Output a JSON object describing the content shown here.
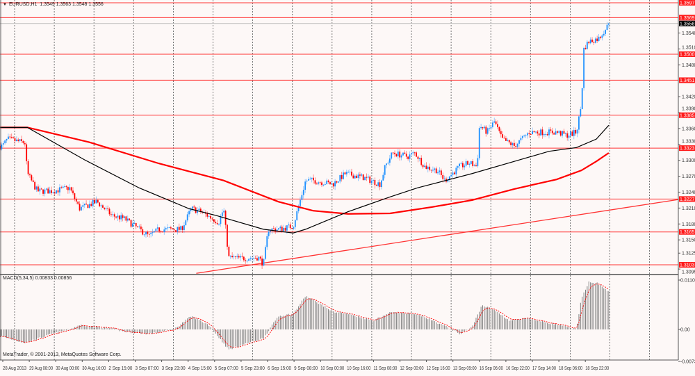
{
  "header": {
    "symbol": "EURUSD,H1",
    "ohlc": "1.3549 1.3563 1.3548 1.3556",
    "collapse_icon": "triangle-down-icon"
  },
  "macd_label": "MACD(5,34,5) 0.00833 0.00856",
  "copyright": "MetaTrader, © 2001-2013, MetaQuotes Software Corp.",
  "colors": {
    "background": "#fdf8f7",
    "bull": "#1e90ff",
    "bear": "#ff0000",
    "level": "#ff3333",
    "ma_fast": "#000000",
    "ma_slow": "#ff0000",
    "histogram": "#808080",
    "signal": "#ff0000"
  },
  "chart_data": [
    {
      "type": "candlestick",
      "title": "EURUSD,H1",
      "ylim": [
        1.309,
        1.3602
      ],
      "x_range_bars": [
        0,
        273
      ],
      "current_price": "1.3558",
      "price_ticks": [
        "1.3540",
        "1.3510",
        "1.3480",
        "1.3420",
        "1.3390",
        "1.3360",
        "1.3330",
        "1.3300",
        "1.3270",
        "1.3240",
        "1.3210",
        "1.3180",
        "1.3150",
        "1.3125",
        "1.3095"
      ],
      "levels": [
        "1.3597",
        "1.3569",
        "1.3500",
        "1.3451",
        "1.3385",
        "1.3323",
        "1.3227",
        "1.3165",
        "1.3103"
      ],
      "close_path": [
        [
          1,
          1.3327
        ],
        [
          3,
          1.334
        ],
        [
          10,
          1.3333
        ],
        [
          11,
          1.3275
        ],
        [
          15,
          1.3242
        ],
        [
          21,
          1.3242
        ],
        [
          28,
          1.3248
        ],
        [
          32,
          1.3209
        ],
        [
          39,
          1.3222
        ],
        [
          45,
          1.3196
        ],
        [
          50,
          1.319
        ],
        [
          56,
          1.317
        ],
        [
          60,
          1.3157
        ],
        [
          64,
          1.317
        ],
        [
          73,
          1.317
        ],
        [
          77,
          1.3209
        ],
        [
          81,
          1.3203
        ],
        [
          88,
          1.3183
        ],
        [
          90,
          1.3209
        ],
        [
          92,
          1.3117
        ],
        [
          97,
          1.3115
        ],
        [
          104,
          1.3117
        ],
        [
          106,
          1.3104
        ],
        [
          108,
          1.317
        ],
        [
          112,
          1.317
        ],
        [
          118,
          1.3176
        ],
        [
          123,
          1.3262
        ],
        [
          126,
          1.3262
        ],
        [
          134,
          1.3255
        ],
        [
          139,
          1.3275
        ],
        [
          146,
          1.3268
        ],
        [
          153,
          1.3255
        ],
        [
          155,
          1.3288
        ],
        [
          158,
          1.3314
        ],
        [
          164,
          1.3307
        ],
        [
          167,
          1.3314
        ],
        [
          171,
          1.3288
        ],
        [
          176,
          1.3281
        ],
        [
          179,
          1.3262
        ],
        [
          185,
          1.3288
        ],
        [
          189,
          1.3295
        ],
        [
          192,
          1.3288
        ],
        [
          193,
          1.3366
        ],
        [
          196,
          1.3353
        ],
        [
          199,
          1.3373
        ],
        [
          202,
          1.334
        ],
        [
          207,
          1.3327
        ],
        [
          213,
          1.3353
        ],
        [
          218,
          1.3353
        ],
        [
          224,
          1.3353
        ],
        [
          228,
          1.3347
        ],
        [
          232,
          1.3353
        ],
        [
          234,
          1.3406
        ],
        [
          235,
          1.3511
        ],
        [
          237,
          1.3524
        ],
        [
          241,
          1.353
        ],
        [
          244,
          1.355
        ],
        [
          245,
          1.3556
        ]
      ],
      "ma_fast": [
        [
          0,
          1.3362
        ],
        [
          11,
          1.3362
        ],
        [
          34,
          1.3301
        ],
        [
          56,
          1.3248
        ],
        [
          76,
          1.3209
        ],
        [
          87,
          1.3196
        ],
        [
          106,
          1.317
        ],
        [
          118,
          1.3163
        ],
        [
          123,
          1.317
        ],
        [
          140,
          1.3203
        ],
        [
          157,
          1.3231
        ],
        [
          168,
          1.3248
        ],
        [
          190,
          1.3275
        ],
        [
          207,
          1.3298
        ],
        [
          221,
          1.3317
        ],
        [
          232,
          1.3324
        ],
        [
          240,
          1.334
        ],
        [
          245,
          1.3366
        ]
      ],
      "ma_slow": [
        [
          0,
          1.3362
        ],
        [
          11,
          1.3362
        ],
        [
          36,
          1.3334
        ],
        [
          64,
          1.3294
        ],
        [
          90,
          1.3262
        ],
        [
          112,
          1.3222
        ],
        [
          126,
          1.3205
        ],
        [
          140,
          1.3199
        ],
        [
          157,
          1.32
        ],
        [
          174,
          1.3212
        ],
        [
          190,
          1.3225
        ],
        [
          207,
          1.3246
        ],
        [
          224,
          1.3264
        ],
        [
          234,
          1.3281
        ],
        [
          240,
          1.3298
        ],
        [
          245,
          1.3314
        ]
      ],
      "trendline": [
        [
          79,
          1.3087
        ],
        [
          273,
          1.3226
        ]
      ]
    },
    {
      "type": "bar",
      "title": "MACD(5,34,5)",
      "ylim": [
        -0.00737,
        0.01107
      ],
      "tick_labels": [
        "0.01107",
        "0.00",
        "-0.00737"
      ],
      "histogram_path": [
        [
          0,
          -0.0015
        ],
        [
          10,
          -0.003
        ],
        [
          20,
          -0.0012
        ],
        [
          28,
          0.0
        ],
        [
          32,
          0.001
        ],
        [
          45,
          0.0002
        ],
        [
          50,
          -0.0005
        ],
        [
          60,
          -0.001
        ],
        [
          70,
          0.0
        ],
        [
          77,
          0.003
        ],
        [
          84,
          0.001
        ],
        [
          92,
          -0.0045
        ],
        [
          100,
          -0.003
        ],
        [
          106,
          -0.002
        ],
        [
          112,
          0.003
        ],
        [
          118,
          0.0035
        ],
        [
          123,
          0.0075
        ],
        [
          128,
          0.006
        ],
        [
          134,
          0.004
        ],
        [
          140,
          0.0035
        ],
        [
          150,
          0.002
        ],
        [
          158,
          0.004
        ],
        [
          165,
          0.0035
        ],
        [
          170,
          0.003
        ],
        [
          180,
          0.0005
        ],
        [
          185,
          -0.001
        ],
        [
          190,
          0.0005
        ],
        [
          194,
          0.0055
        ],
        [
          200,
          0.004
        ],
        [
          205,
          0.002
        ],
        [
          212,
          0.0025
        ],
        [
          225,
          0.001
        ],
        [
          232,
          0.0
        ],
        [
          234,
          0.007
        ],
        [
          237,
          0.0107
        ],
        [
          240,
          0.0105
        ],
        [
          245,
          0.0085
        ]
      ]
    }
  ],
  "time_labels": [
    "28 Aug 2013",
    "29 Aug 08:00",
    "30 Aug 00:00",
    "30 Aug 16:00",
    "2 Sep 15:00",
    "3 Sep 07:00",
    "3 Sep 23:00",
    "4 Sep 15:00",
    "5 Sep 07:00",
    "5 Sep 23:00",
    "6 Sep 15:00",
    "9 Sep 08:00",
    "10 Sep 00:00",
    "10 Sep 16:00",
    "11 Sep 08:00",
    "12 Sep 00:00",
    "12 Sep 16:00",
    "13 Sep 09:00",
    "16 Sep 06:00",
    "16 Sep 22:00",
    "17 Sep 14:00",
    "18 Sep 06:00",
    "18 Sep 22:00"
  ]
}
